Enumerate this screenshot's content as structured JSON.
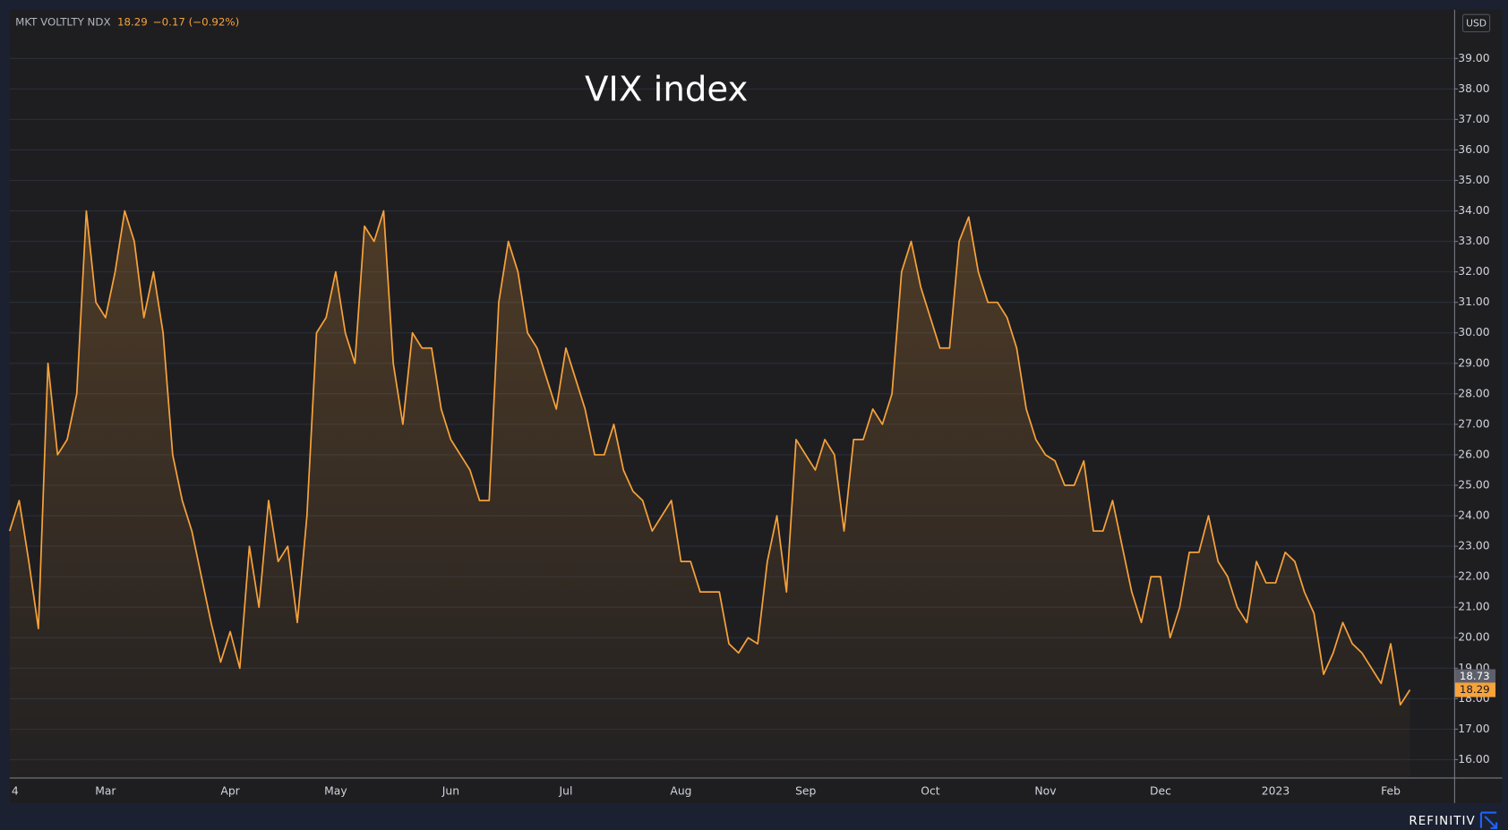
{
  "chart_data": {
    "type": "area",
    "title": "VIX index",
    "change": "−0.17 (−0.92%)",
    "currency": "USD",
    "source": "REFINITIV",
    "reference_value": 18.73,
    "grid": true,
    "categories": [
      "4",
      null,
      null,
      null,
      null,
      null,
      null,
      null,
      null,
      null,
      "Mar",
      null,
      null,
      null,
      null,
      null,
      null,
      null,
      null,
      null,
      null,
      null,
      null,
      "Apr",
      null,
      null,
      null,
      null,
      null,
      null,
      null,
      null,
      null,
      null,
      "May",
      null,
      null,
      null,
      null,
      null,
      null,
      null,
      null,
      null,
      null,
      null,
      "Jun",
      null,
      null,
      null,
      null,
      null,
      null,
      null,
      null,
      null,
      null,
      null,
      "Jul",
      null,
      null,
      null,
      null,
      null,
      null,
      null,
      null,
      null,
      null,
      null,
      "Aug",
      null,
      null,
      null,
      null,
      null,
      null,
      null,
      null,
      null,
      null,
      null,
      null,
      "Sep",
      null,
      null,
      null,
      null,
      null,
      null,
      null,
      null,
      null,
      null,
      null,
      null,
      "Oct",
      null,
      null,
      null,
      null,
      null,
      null,
      null,
      null,
      null,
      null,
      null,
      "Nov",
      null,
      null,
      null,
      null,
      null,
      null,
      null,
      null,
      null,
      null,
      null,
      "Dec",
      null,
      null,
      null,
      null,
      null,
      null,
      null,
      null,
      null,
      null,
      null,
      "2023",
      null,
      null,
      null,
      null,
      null,
      null,
      null,
      null,
      null,
      null,
      null,
      "Feb",
      null,
      null
    ],
    "series": [
      {
        "name": "MKT VOLTLTY NDX",
        "color": "#f7a23b",
        "values": [
          23.5,
          24.5,
          22.5,
          20.3,
          29,
          26,
          26.5,
          28,
          34,
          31,
          30.5,
          32,
          34,
          33,
          30.5,
          32,
          30,
          26,
          24.5,
          23.5,
          22,
          20.5,
          19.2,
          20.2,
          19,
          23,
          21,
          24.5,
          22.5,
          23,
          20.5,
          24,
          30,
          30.5,
          32,
          30,
          29,
          33.5,
          33,
          34,
          29,
          27,
          30,
          29.5,
          29.5,
          27.5,
          26.5,
          26,
          25.5,
          24.5,
          24.5,
          31,
          33,
          32,
          30,
          29.5,
          28.5,
          27.5,
          29.5,
          28.5,
          27.5,
          26,
          26,
          27,
          25.5,
          24.8,
          24.5,
          23.5,
          24,
          24.5,
          22.5,
          22.5,
          21.5,
          21.5,
          21.5,
          19.8,
          19.5,
          20,
          19.8,
          22.5,
          24,
          21.5,
          26.5,
          26,
          25.5,
          26.5,
          26,
          23.5,
          26.5,
          26.5,
          27.5,
          27,
          28,
          32,
          33,
          31.5,
          30.5,
          29.5,
          29.5,
          33,
          33.8,
          32,
          31,
          31,
          30.5,
          29.5,
          27.5,
          26.5,
          26,
          25.8,
          25,
          25,
          25.8,
          23.5,
          23.5,
          24.5,
          23,
          21.5,
          20.5,
          22,
          22,
          20,
          21,
          22.8,
          22.8,
          24,
          22.5,
          22,
          21,
          20.5,
          22.5,
          21.8,
          21.8,
          22.8,
          22.5,
          21.5,
          20.8,
          18.8,
          19.5,
          20.5,
          19.8,
          19.5,
          19,
          18.5,
          19.8,
          17.8,
          18.29
        ]
      }
    ],
    "ylim": [
      15.43,
      40.6
    ],
    "yticks": [
      {
        "value": 16,
        "label": "16.00"
      },
      {
        "value": 17,
        "label": "17.00"
      },
      {
        "value": 18,
        "label": "18.00"
      },
      {
        "value": 19,
        "label": "19.00"
      },
      {
        "value": 20,
        "label": "20.00"
      },
      {
        "value": 21,
        "label": "21.00"
      },
      {
        "value": 22,
        "label": "22.00"
      },
      {
        "value": 23,
        "label": "23.00"
      },
      {
        "value": 24,
        "label": "24.00"
      },
      {
        "value": 25,
        "label": "25.00"
      },
      {
        "value": 26,
        "label": "26.00"
      },
      {
        "value": 27,
        "label": "27.00"
      },
      {
        "value": 28,
        "label": "28.00"
      },
      {
        "value": 29,
        "label": "29.00"
      },
      {
        "value": 30,
        "label": "30.00"
      },
      {
        "value": 31,
        "label": "31.00"
      },
      {
        "value": 32,
        "label": "32.00"
      },
      {
        "value": 33,
        "label": "33.00"
      },
      {
        "value": 34,
        "label": "34.00"
      },
      {
        "value": 35,
        "label": "35.00"
      },
      {
        "value": 36,
        "label": "36.00"
      },
      {
        "value": 37,
        "label": "37.00"
      },
      {
        "value": 38,
        "label": "38.00"
      },
      {
        "value": 39,
        "label": "39.00"
      }
    ]
  }
}
